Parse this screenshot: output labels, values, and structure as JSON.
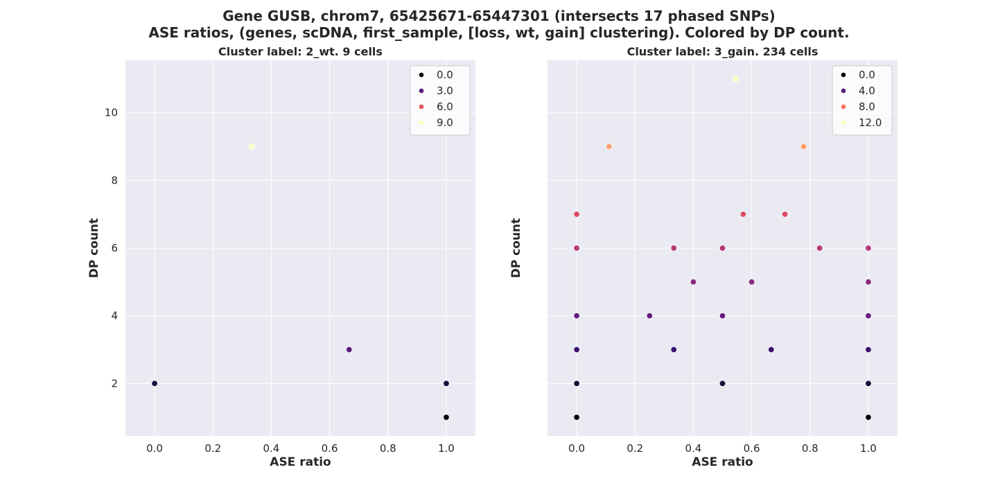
{
  "title": {
    "line1": "Gene GUSB, chrom7, 65425671-65447301 (intersects 17 phased SNPs)",
    "line2": "ASE ratios, (genes, scDNA, first_sample, [loss, wt, gain] clustering). Colored by DP count."
  },
  "colors": {
    "plot_bg": "#eaeaf2",
    "grid": "#ffffff"
  },
  "chart_data": [
    {
      "type": "scatter",
      "title": "Cluster label: 2_wt. 9 cells",
      "xlabel": "ASE ratio",
      "ylabel": "DP count",
      "xlim": [
        -0.1,
        1.1
      ],
      "ylim": [
        0.45,
        11.55
      ],
      "xticks": [
        "0.0",
        "0.2",
        "0.4",
        "0.6",
        "0.8",
        "1.0"
      ],
      "yticks": [
        "2",
        "4",
        "6",
        "8",
        "10"
      ],
      "grid": true,
      "legend_position": "top-right",
      "legend": [
        {
          "label": "0.0",
          "color": "#000004"
        },
        {
          "label": "3.0",
          "color": "#5a167e"
        },
        {
          "label": "6.0",
          "color": "#e4505e"
        },
        {
          "label": "9.0",
          "color": "#fcfdbf"
        }
      ],
      "points": [
        {
          "x": 0.0,
          "y": 2,
          "color": "#1a0f3e"
        },
        {
          "x": 0.333,
          "y": 9,
          "color": "#fcfdbf"
        },
        {
          "x": 0.667,
          "y": 3,
          "color": "#5a167e"
        },
        {
          "x": 1.0,
          "y": 2,
          "color": "#1a0f3e"
        },
        {
          "x": 1.0,
          "y": 1,
          "color": "#000004"
        }
      ]
    },
    {
      "type": "scatter",
      "title": "Cluster label: 3_gain. 234 cells",
      "xlabel": "ASE ratio",
      "ylabel": "DP count",
      "xlim": [
        -0.1,
        1.1
      ],
      "ylim": [
        0.45,
        11.55
      ],
      "xticks": [
        "0.0",
        "0.2",
        "0.4",
        "0.6",
        "0.8",
        "1.0"
      ],
      "yticks": [],
      "grid": true,
      "legend_position": "top-right",
      "legend": [
        {
          "label": "0.0",
          "color": "#000004"
        },
        {
          "label": "4.0",
          "color": "#5a167e"
        },
        {
          "label": "8.0",
          "color": "#f7725c"
        },
        {
          "label": "12.0",
          "color": "#fcfdbf"
        }
      ],
      "points": [
        {
          "x": 0.545,
          "y": 11,
          "color": "#fcfdbf"
        },
        {
          "x": 0.111,
          "y": 9,
          "color": "#fe9f6d"
        },
        {
          "x": 0.778,
          "y": 9,
          "color": "#fe9f6d"
        },
        {
          "x": 0.0,
          "y": 7,
          "color": "#de4968"
        },
        {
          "x": 0.571,
          "y": 7,
          "color": "#de4968"
        },
        {
          "x": 0.714,
          "y": 7,
          "color": "#de4968"
        },
        {
          "x": 0.0,
          "y": 6,
          "color": "#b73779"
        },
        {
          "x": 0.333,
          "y": 6,
          "color": "#b73779"
        },
        {
          "x": 0.5,
          "y": 6,
          "color": "#b73779"
        },
        {
          "x": 0.833,
          "y": 6,
          "color": "#b73779"
        },
        {
          "x": 1.0,
          "y": 6,
          "color": "#b73779"
        },
        {
          "x": 0.4,
          "y": 5,
          "color": "#8c2981"
        },
        {
          "x": 0.6,
          "y": 5,
          "color": "#8c2981"
        },
        {
          "x": 1.0,
          "y": 5,
          "color": "#8c2981"
        },
        {
          "x": 0.0,
          "y": 4,
          "color": "#641a80"
        },
        {
          "x": 0.25,
          "y": 4,
          "color": "#641a80"
        },
        {
          "x": 0.5,
          "y": 4,
          "color": "#641a80"
        },
        {
          "x": 1.0,
          "y": 4,
          "color": "#641a80"
        },
        {
          "x": 0.0,
          "y": 3,
          "color": "#3b0f70"
        },
        {
          "x": 0.333,
          "y": 3,
          "color": "#3b0f70"
        },
        {
          "x": 0.667,
          "y": 3,
          "color": "#3b0f70"
        },
        {
          "x": 1.0,
          "y": 3,
          "color": "#3b0f70"
        },
        {
          "x": 0.0,
          "y": 2,
          "color": "#140e36"
        },
        {
          "x": 0.5,
          "y": 2,
          "color": "#140e36"
        },
        {
          "x": 1.0,
          "y": 2,
          "color": "#140e36"
        },
        {
          "x": 0.0,
          "y": 1,
          "color": "#000004"
        },
        {
          "x": 1.0,
          "y": 1,
          "color": "#000004"
        }
      ]
    }
  ]
}
